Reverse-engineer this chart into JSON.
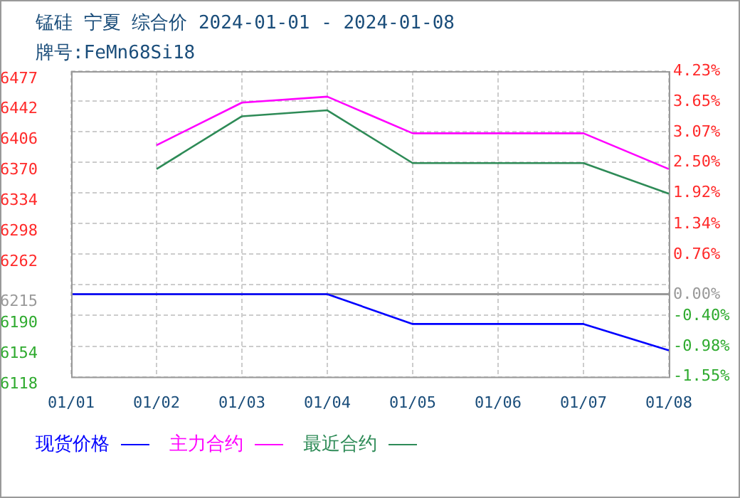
{
  "chart_data": {
    "type": "line",
    "title": "锰硅 宁夏 综合价 2024-01-01 - 2024-01-08",
    "subtitle": "牌号:FeMn68Si18",
    "categories": [
      "01/01",
      "01/02",
      "01/03",
      "01/04",
      "01/05",
      "01/06",
      "01/07",
      "01/08"
    ],
    "series": [
      {
        "name": "现货价格",
        "color": "#0000ff",
        "values": [
          6215,
          6215,
          6215,
          6215,
          6180,
          6180,
          6180,
          6149
        ]
      },
      {
        "name": "主力合约",
        "color": "#ff00ff",
        "values": [
          null,
          6390,
          6440,
          6447,
          6404,
          6404,
          6404,
          6362
        ]
      },
      {
        "name": "最近合约",
        "color": "#2e8b57",
        "values": [
          null,
          6362,
          6424,
          6431,
          6369,
          6369,
          6369,
          6333
        ]
      }
    ],
    "ylim": [
      6118,
      6477
    ],
    "yticks": [
      6118,
      6154,
      6190,
      {
        "value": 6215,
        "label": "6215"
      },
      {
        "value": 6226,
        "label": null
      },
      6262,
      6298,
      6334,
      6370,
      6406,
      6442,
      6477
    ],
    "y2lim": [
      -1.55,
      4.23
    ],
    "y2ticks": [
      {
        "value": -1.55,
        "label": "-1.55%"
      },
      {
        "value": -0.98,
        "label": "-0.98%"
      },
      {
        "value": -0.4,
        "label": "-0.40%"
      },
      {
        "value": 0,
        "label": "0.00%"
      },
      {
        "value": 0.76,
        "label": "0.76%"
      },
      {
        "value": 1.34,
        "label": "1.34%"
      },
      {
        "value": 1.92,
        "label": "1.92%"
      },
      {
        "value": 2.5,
        "label": "2.50%"
      },
      {
        "value": 3.07,
        "label": "3.07%"
      },
      {
        "value": 3.65,
        "label": "3.65%"
      },
      {
        "value": 4.23,
        "label": "4.23%"
      }
    ],
    "ref_lines": [
      {
        "axis": "y",
        "value": 6215,
        "color": "#999999"
      }
    ],
    "grid": true,
    "legend": "bottom left",
    "marker": "none",
    "line_style": "solid"
  }
}
